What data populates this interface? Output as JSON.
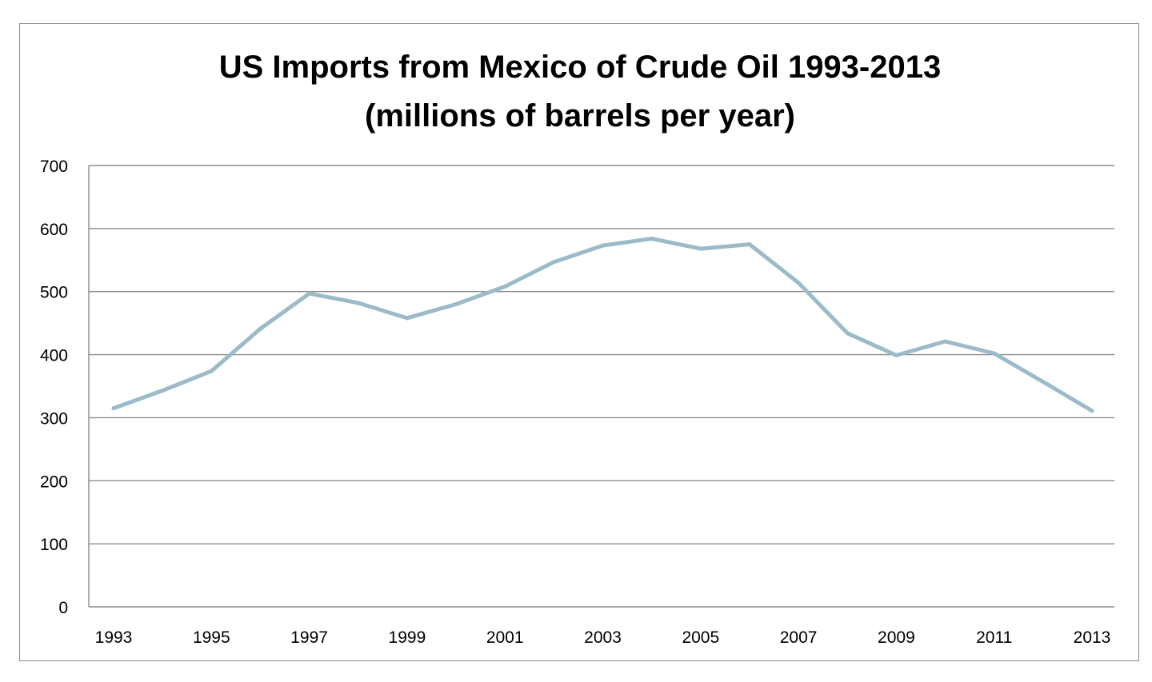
{
  "chart_data": {
    "type": "line",
    "title": "US Imports from Mexico of Crude Oil 1993-2013",
    "subtitle": "(millions of barrels per year)",
    "xlabel": "",
    "ylabel": "",
    "x": [
      1993,
      1994,
      1995,
      1996,
      1997,
      1998,
      1999,
      2000,
      2001,
      2002,
      2003,
      2004,
      2005,
      2006,
      2007,
      2008,
      2009,
      2010,
      2011,
      2012,
      2013
    ],
    "x_tick_labels": [
      "1993",
      "1995",
      "1997",
      "1999",
      "2001",
      "2003",
      "2005",
      "2007",
      "2009",
      "2011",
      "2013"
    ],
    "y_tick_labels": [
      "0",
      "100",
      "200",
      "300",
      "400",
      "500",
      "600",
      "700"
    ],
    "ylim": [
      0,
      700
    ],
    "grid": true,
    "legend": "none",
    "series": [
      {
        "color": "#9bbbc9",
        "values": [
          315,
          343,
          374,
          441,
          497,
          482,
          458,
          480,
          508,
          547,
          573,
          584,
          568,
          575,
          514,
          434,
          399,
          421,
          402,
          357,
          311
        ]
      }
    ]
  }
}
